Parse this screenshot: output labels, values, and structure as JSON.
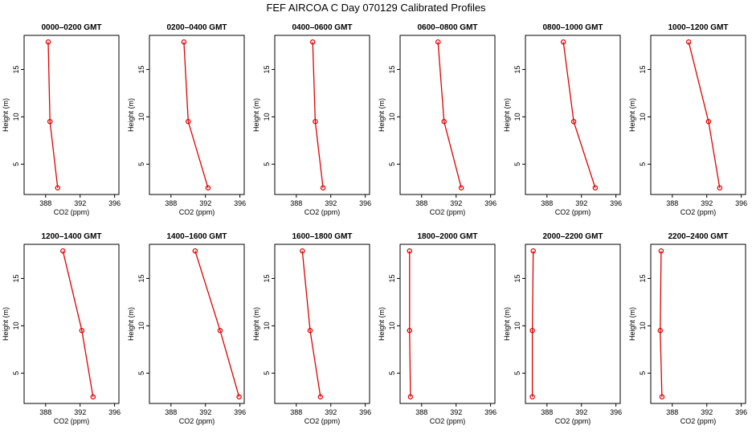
{
  "title": "FEF AIRCOA C  Day 070129  Calibrated Profiles",
  "chart_data": {
    "type": "line",
    "xlabel": "CO2 (ppm)",
    "ylabel": "Height (m)",
    "xlim": [
      385.5,
      396.5
    ],
    "ylim": [
      1.8,
      18.6
    ],
    "xticks": [
      388,
      392,
      396
    ],
    "yticks": [
      5,
      10,
      15
    ],
    "line_color": "#e00000",
    "panels": [
      {
        "title": "0000–0200 GMT",
        "points": [
          {
            "x": 388.3,
            "y": 17.9
          },
          {
            "x": 388.5,
            "y": 9.5
          },
          {
            "x": 389.4,
            "y": 2.5
          }
        ]
      },
      {
        "title": "0200–0400 GMT",
        "points": [
          {
            "x": 389.5,
            "y": 17.9
          },
          {
            "x": 390.0,
            "y": 9.5
          },
          {
            "x": 392.3,
            "y": 2.5
          }
        ]
      },
      {
        "title": "0400–0600 GMT",
        "points": [
          {
            "x": 389.9,
            "y": 17.9
          },
          {
            "x": 390.2,
            "y": 9.5
          },
          {
            "x": 391.1,
            "y": 2.5
          }
        ]
      },
      {
        "title": "0600–0800 GMT",
        "points": [
          {
            "x": 389.9,
            "y": 17.9
          },
          {
            "x": 390.6,
            "y": 9.5
          },
          {
            "x": 392.6,
            "y": 2.5
          }
        ]
      },
      {
        "title": "0800–1000 GMT",
        "points": [
          {
            "x": 389.9,
            "y": 17.9
          },
          {
            "x": 391.1,
            "y": 9.5
          },
          {
            "x": 393.6,
            "y": 2.5
          }
        ]
      },
      {
        "title": "1000–1200 GMT",
        "points": [
          {
            "x": 389.9,
            "y": 17.9
          },
          {
            "x": 392.2,
            "y": 9.5
          },
          {
            "x": 393.5,
            "y": 2.5
          }
        ]
      },
      {
        "title": "1200–1400 GMT",
        "points": [
          {
            "x": 390.0,
            "y": 17.9
          },
          {
            "x": 392.2,
            "y": 9.5
          },
          {
            "x": 393.5,
            "y": 2.5
          }
        ]
      },
      {
        "title": "1400–1600 GMT",
        "points": [
          {
            "x": 390.8,
            "y": 17.9
          },
          {
            "x": 393.7,
            "y": 9.5
          },
          {
            "x": 395.9,
            "y": 2.5
          }
        ]
      },
      {
        "title": "1600–1800 GMT",
        "points": [
          {
            "x": 388.7,
            "y": 17.9
          },
          {
            "x": 389.6,
            "y": 9.5
          },
          {
            "x": 390.8,
            "y": 2.5
          }
        ]
      },
      {
        "title": "1800–2000 GMT",
        "points": [
          {
            "x": 386.6,
            "y": 17.9
          },
          {
            "x": 386.6,
            "y": 9.5
          },
          {
            "x": 386.7,
            "y": 2.5
          }
        ]
      },
      {
        "title": "2000–2200 GMT",
        "points": [
          {
            "x": 386.4,
            "y": 17.9
          },
          {
            "x": 386.3,
            "y": 9.5
          },
          {
            "x": 386.3,
            "y": 2.5
          }
        ]
      },
      {
        "title": "2200–2400 GMT",
        "points": [
          {
            "x": 386.7,
            "y": 17.9
          },
          {
            "x": 386.6,
            "y": 9.5
          },
          {
            "x": 386.8,
            "y": 2.5
          }
        ]
      }
    ]
  }
}
